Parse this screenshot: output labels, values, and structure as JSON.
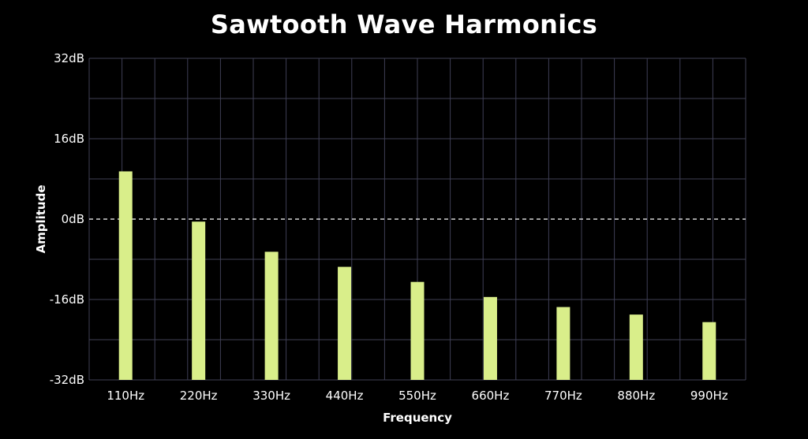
{
  "chart_data": {
    "type": "bar",
    "title": "Sawtooth Wave Harmonics",
    "xlabel": "Frequency",
    "ylabel": "Amplitude",
    "categories": [
      "110Hz",
      "220Hz",
      "330Hz",
      "440Hz",
      "550Hz",
      "660Hz",
      "770Hz",
      "880Hz",
      "990Hz"
    ],
    "values": [
      9.5,
      -0.5,
      -6.5,
      -9.5,
      -12.5,
      -15.5,
      -17.5,
      -19,
      -20.5
    ],
    "ylim": [
      -32,
      32
    ],
    "yticks": [
      "32dB",
      "16dB",
      "0dB",
      "-16dB",
      "-32dB"
    ],
    "ytick_values": [
      32,
      16,
      0,
      -16,
      -32
    ],
    "grid": true,
    "reference_line": 0,
    "colors": {
      "bar": "#d9ee8a",
      "grid": "#3f3f55",
      "background": "#000000",
      "text": "#ffffff",
      "reference_line": "#ffffff"
    }
  }
}
